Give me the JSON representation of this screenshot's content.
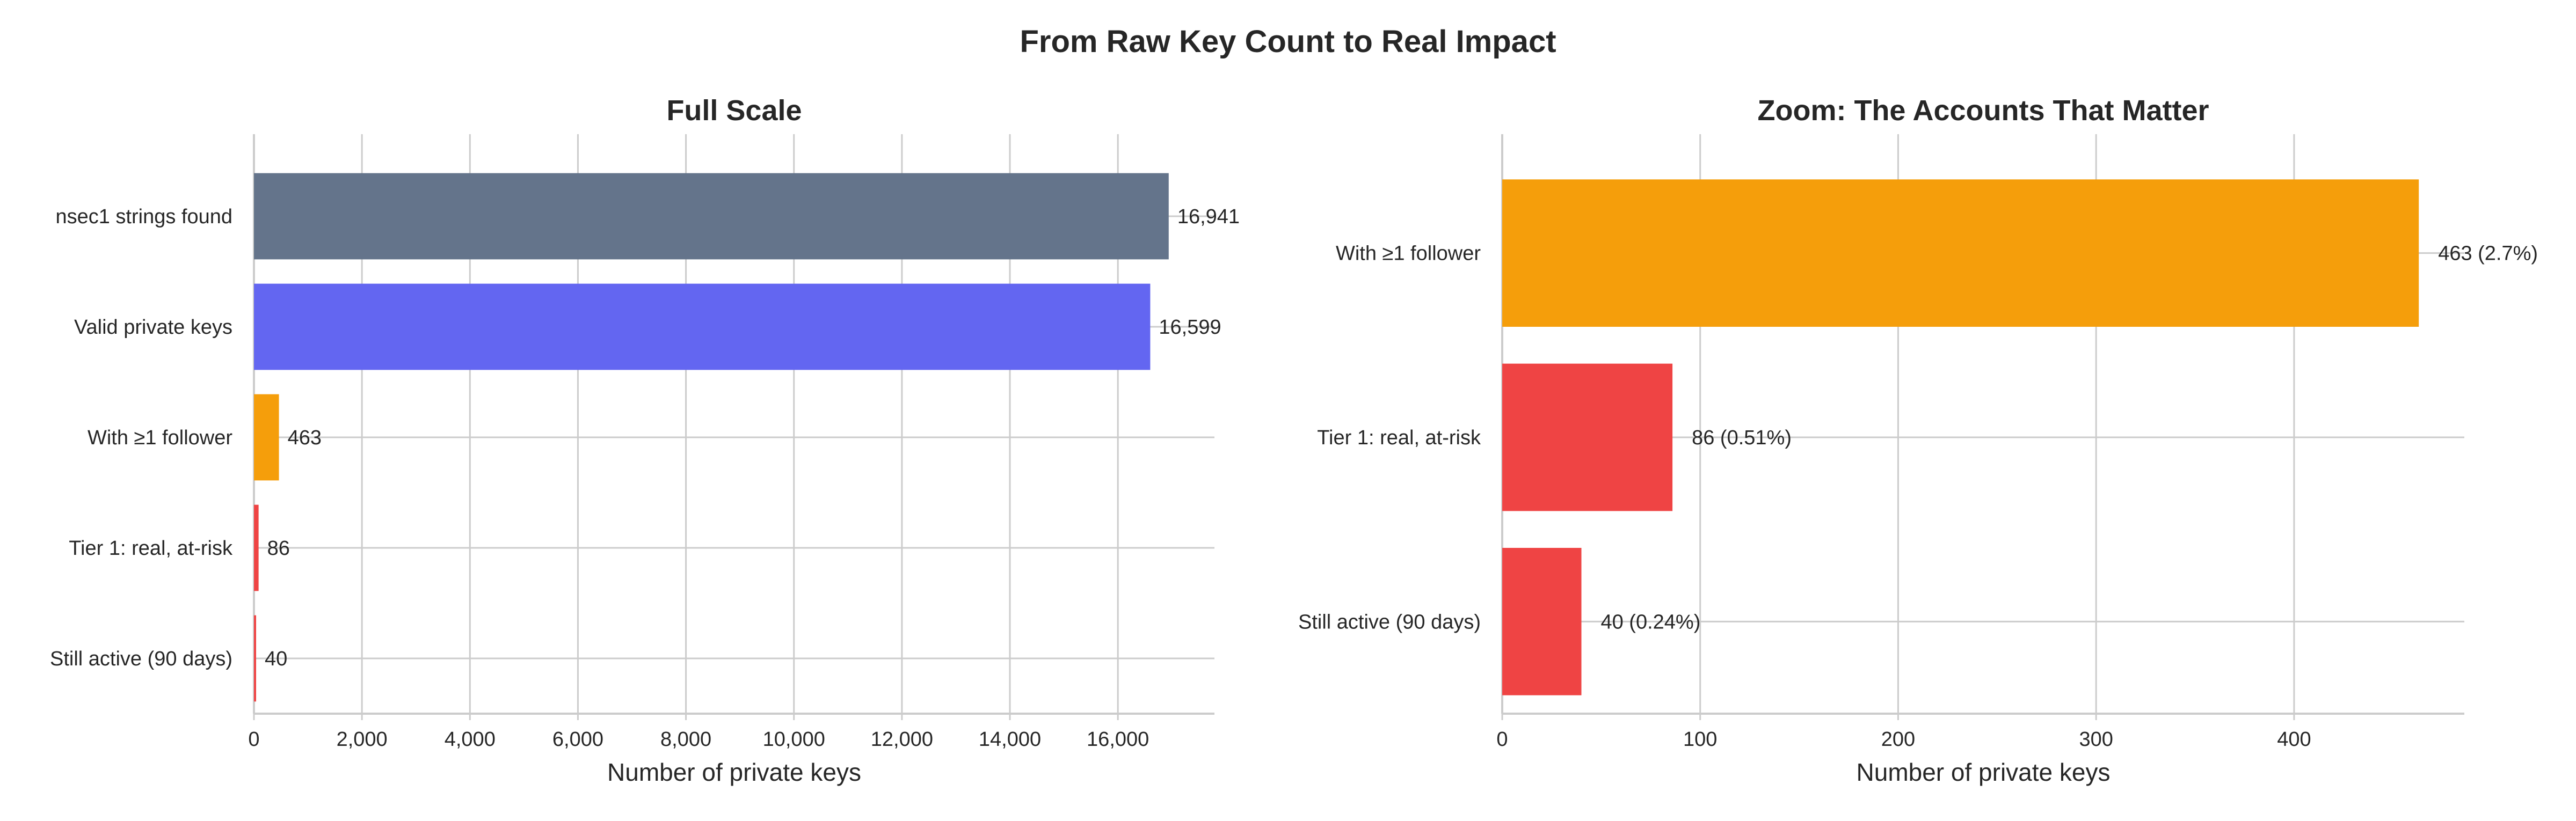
{
  "figure": {
    "title": "From Raw Key Count to Real Impact"
  },
  "chart_data": [
    {
      "type": "bar",
      "orientation": "horizontal",
      "title": "Full Scale",
      "xlabel": "Number of private keys",
      "ylabel": "",
      "xlim": [
        0,
        17788
      ],
      "xticks": [
        0,
        2000,
        4000,
        6000,
        8000,
        10000,
        12000,
        14000,
        16000
      ],
      "xtick_labels": [
        "0",
        "2,000",
        "4,000",
        "6,000",
        "8,000",
        "10,000",
        "12,000",
        "14,000",
        "16,000"
      ],
      "grid": true,
      "categories": [
        "nsec1 strings found",
        "Valid private keys",
        "With ≥1 follower",
        "Tier 1: real, at-risk",
        "Still active (90 days)"
      ],
      "values": [
        16941,
        16599,
        463,
        86,
        40
      ],
      "value_labels": [
        "16,941",
        "16,599",
        "463",
        "86",
        "40"
      ],
      "colors": [
        "#64748b",
        "#6366f1",
        "#f59e0b",
        "#ef4444",
        "#ef4444"
      ]
    },
    {
      "type": "bar",
      "orientation": "horizontal",
      "title": "Zoom: The Accounts That Matter",
      "xlabel": "Number of private keys",
      "ylabel": "",
      "xlim": [
        0,
        486
      ],
      "xticks": [
        0,
        100,
        200,
        300,
        400
      ],
      "xtick_labels": [
        "0",
        "100",
        "200",
        "300",
        "400"
      ],
      "grid": true,
      "categories": [
        "With ≥1 follower",
        "Tier 1: real, at-risk",
        "Still active (90 days)"
      ],
      "values": [
        463,
        86,
        40
      ],
      "value_labels": [
        "463 (2.7%)",
        "86 (0.51%)",
        "40 (0.24%)"
      ],
      "colors": [
        "#f59e0b",
        "#ef4444",
        "#ef4444"
      ]
    }
  ]
}
